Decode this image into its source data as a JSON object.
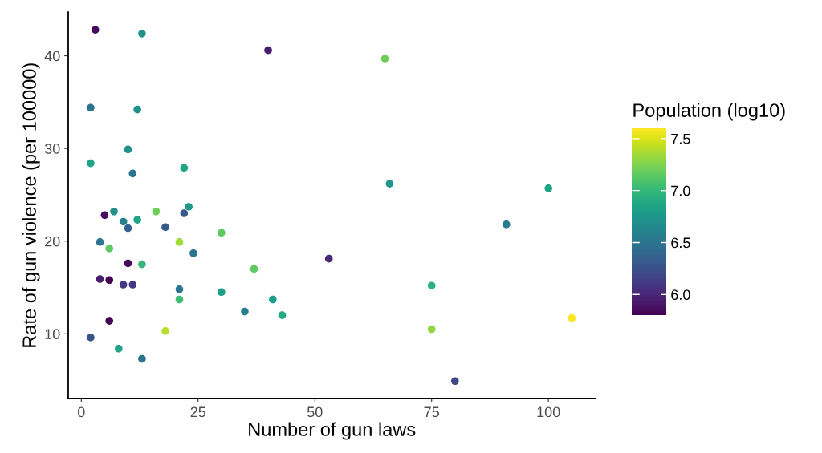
{
  "chart_data": {
    "type": "scatter",
    "xlabel": "Number of gun laws",
    "ylabel": "Rate of gun violence (per 100000)",
    "clabel": "Population (log10)",
    "x": [
      3,
      13,
      40,
      65,
      2,
      12,
      10,
      2,
      11,
      22,
      66,
      100,
      91,
      5,
      7,
      16,
      23,
      22,
      9,
      12,
      10,
      18,
      30,
      4,
      21,
      6,
      24,
      37,
      10,
      13,
      4,
      6,
      9,
      11,
      21,
      21,
      30,
      35,
      6,
      18,
      2,
      8,
      13,
      53,
      75,
      41,
      43,
      75,
      105,
      80
    ],
    "values": [
      42.8,
      42.4,
      40.6,
      39.7,
      34.4,
      34.2,
      29.9,
      28.4,
      27.3,
      27.9,
      26.2,
      25.7,
      21.8,
      22.8,
      23.2,
      23.2,
      23.7,
      23.0,
      22.1,
      22.3,
      21.4,
      21.5,
      20.9,
      19.9,
      19.9,
      19.2,
      18.7,
      17.0,
      17.6,
      17.5,
      15.9,
      15.8,
      15.3,
      15.3,
      14.8,
      13.7,
      14.5,
      12.4,
      11.4,
      10.3,
      9.6,
      8.4,
      7.3,
      18.1,
      15.2,
      13.7,
      12.0,
      10.5,
      11.7,
      4.9
    ],
    "cvalues": [
      5.85,
      6.7,
      5.95,
      7.2,
      6.5,
      6.7,
      6.7,
      6.85,
      6.5,
      6.85,
      6.75,
      6.85,
      6.55,
      5.85,
      6.7,
      7.2,
      6.75,
      6.3,
      6.6,
      6.85,
      6.35,
      6.3,
      7.15,
      6.5,
      7.35,
      7.15,
      6.5,
      7.15,
      5.85,
      7.0,
      5.95,
      5.8,
      6.1,
      6.1,
      6.5,
      7.05,
      6.8,
      6.6,
      5.8,
      7.4,
      6.25,
      6.85,
      6.5,
      6.0,
      6.95,
      6.8,
      6.9,
      7.3,
      7.6,
      6.2
    ],
    "marker": "circle",
    "grid": false,
    "xlim": [
      -2.8,
      110
    ],
    "ylim": [
      3.0,
      44.7
    ],
    "xticks": [
      0,
      25,
      50,
      75,
      100
    ],
    "yticks": [
      10,
      20,
      30,
      40
    ],
    "clim": [
      5.8,
      7.6
    ],
    "cticks": [
      {
        "value": 6,
        "label": "6.0"
      },
      6.5,
      {
        "value": 7,
        "label": "7.0"
      },
      7.5
    ]
  }
}
